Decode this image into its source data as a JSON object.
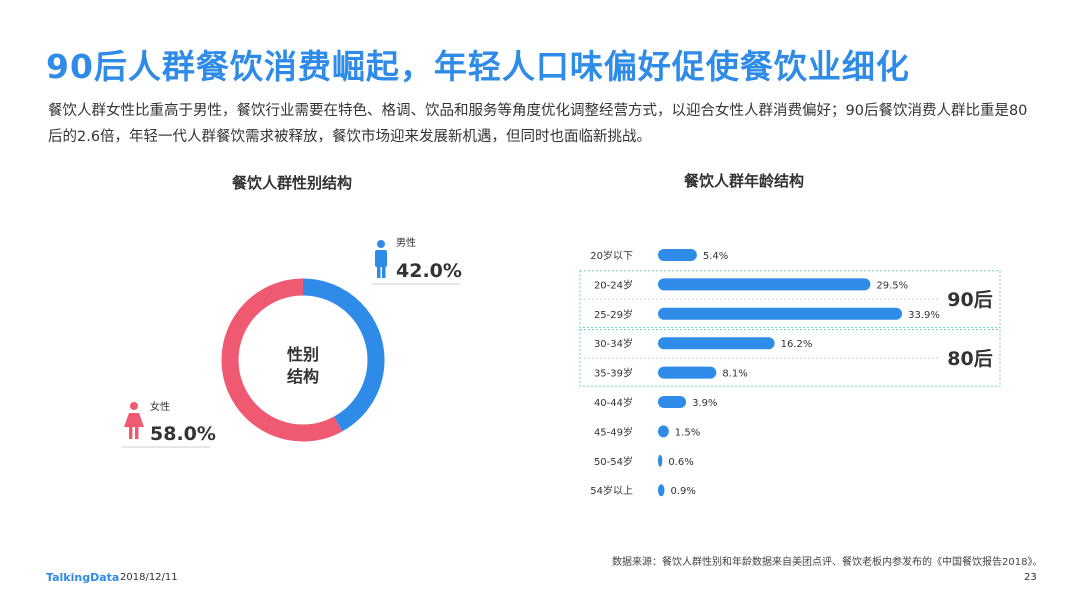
{
  "header": {
    "title": "90后人群餐饮消费崛起，年轻人口味偏好促使餐饮业细化",
    "subtitle": "餐饮人群女性比重高于男性，餐饮行业需要在特色、格调、饮品和服务等角度优化调整经营方式，以迎合女性人群消费偏好；90后餐饮消费人群比重是80后的2.6倍，年轻一代人群餐饮需求被释放，餐饮市场迎来发展新机遇，但同时也面临新挑战。"
  },
  "chart_data": [
    {
      "type": "pie",
      "title": "餐饮人群性别结构",
      "center_label": "性别\n结构",
      "slices": [
        {
          "name": "男性",
          "value": 42.0,
          "label": "42.0%",
          "color": "#2f8be8",
          "icon": "male-icon"
        },
        {
          "name": "女性",
          "value": 58.0,
          "label": "58.0%",
          "color": "#ef5a72",
          "icon": "female-icon"
        }
      ]
    },
    {
      "type": "bar",
      "orientation": "horizontal",
      "title": "餐饮人群年龄结构",
      "categories": [
        "20岁以下",
        "20-24岁",
        "25-29岁",
        "30-34岁",
        "35-39岁",
        "40-44岁",
        "45-49岁",
        "50-54岁",
        "54岁以上"
      ],
      "values": [
        5.4,
        29.5,
        33.9,
        16.2,
        8.1,
        3.9,
        1.5,
        0.6,
        0.9
      ],
      "labels": [
        "5.4%",
        "29.5%",
        "33.9%",
        "16.2%",
        "8.1%",
        "3.9%",
        "1.5%",
        "0.6%",
        "0.9%"
      ],
      "color": "#2f8be8",
      "groups": [
        {
          "label": "90后",
          "categories": [
            "20-24岁",
            "25-29岁"
          ]
        },
        {
          "label": "80后",
          "categories": [
            "30-34岁",
            "35-39岁"
          ]
        }
      ]
    }
  ],
  "footer": {
    "source": "数据来源：餐饮人群性别和年龄数据来自美团点评、餐饮老板内参发布的《中国餐饮报告2018》。",
    "logo": "TalkingData",
    "date": "2018/12/11",
    "page": "23"
  }
}
